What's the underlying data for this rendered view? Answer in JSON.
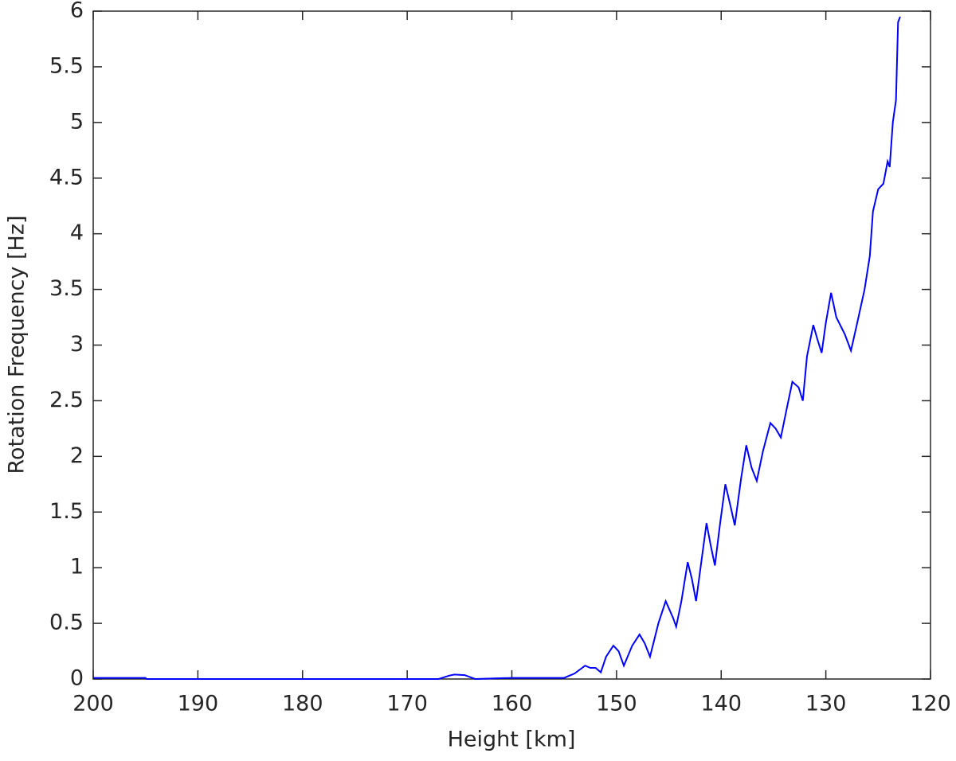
{
  "chart_data": {
    "type": "line",
    "x_label": "Height [km]",
    "y_label": "Rotation Frequency [Hz]",
    "xlim": [
      200,
      120
    ],
    "xticks": [
      200,
      190,
      180,
      170,
      160,
      150,
      140,
      130,
      120
    ],
    "ylim": [
      0,
      6
    ],
    "yticks": [
      0,
      0.5,
      1,
      1.5,
      2,
      2.5,
      3,
      3.5,
      4,
      4.5,
      5,
      5.5,
      6
    ],
    "grid": false,
    "series": [
      {
        "color": "#0000ff",
        "x": [
          200,
          195,
          194.9,
          170,
          167,
          166,
          165.5,
          164.5,
          163.8,
          163.5,
          160,
          157,
          155,
          154,
          153,
          152.5,
          152,
          151.5,
          151,
          150.3,
          149.8,
          149.3,
          148.5,
          147.8,
          147.3,
          146.8,
          146,
          145.3,
          144.6,
          144.3,
          143.8,
          143.2,
          142.8,
          142.4,
          141.9,
          141.4,
          141,
          140.6,
          140.1,
          139.6,
          139.1,
          138.7,
          138.1,
          137.6,
          137.1,
          136.6,
          136,
          135.3,
          134.8,
          134.3,
          133.8,
          133.2,
          132.6,
          132.2,
          131.8,
          131.2,
          130.8,
          130.4,
          130,
          129.5,
          129,
          128.2,
          127.6,
          127,
          126.3,
          125.8,
          125.5,
          125,
          124.5,
          124.1,
          123.9,
          123.6,
          123.3,
          123.1,
          122.9
        ],
        "values": [
          0.01,
          0.01,
          0,
          0,
          0,
          0.03,
          0.04,
          0.035,
          0.01,
          0,
          0.01,
          0.01,
          0.01,
          0.05,
          0.12,
          0.1,
          0.1,
          0.06,
          0.2,
          0.3,
          0.25,
          0.12,
          0.3,
          0.4,
          0.32,
          0.2,
          0.5,
          0.7,
          0.55,
          0.47,
          0.7,
          1.05,
          0.9,
          0.7,
          1.05,
          1.4,
          1.2,
          1.02,
          1.4,
          1.75,
          1.55,
          1.38,
          1.8,
          2.1,
          1.9,
          1.78,
          2.05,
          2.3,
          2.25,
          2.17,
          2.4,
          2.67,
          2.62,
          2.5,
          2.9,
          3.18,
          3.05,
          2.93,
          3.2,
          3.47,
          3.25,
          3.1,
          2.95,
          3.2,
          3.5,
          3.8,
          4.2,
          4.4,
          4.45,
          4.65,
          4.6,
          5.0,
          5.2,
          5.9,
          5.95
        ]
      }
    ]
  }
}
